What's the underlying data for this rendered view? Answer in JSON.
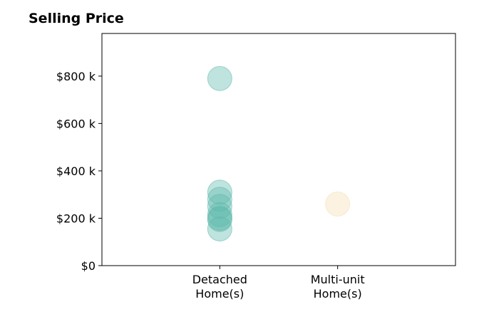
{
  "chart_data": {
    "type": "scatter",
    "title": "Selling Price",
    "xlabel": "",
    "ylabel": "",
    "categories": [
      "Detached\nHome(s)",
      "Multi-unit\nHome(s)"
    ],
    "x_range": [
      -1,
      2
    ],
    "ylim": [
      0,
      980000
    ],
    "y_ticks": [
      0,
      200000,
      400000,
      600000,
      800000
    ],
    "y_tick_labels": [
      "$0",
      "$200 k",
      "$400 k",
      "$600 k",
      "$800 k"
    ],
    "grid": false,
    "series": [
      {
        "category": "Detached\nHome(s)",
        "color": "#5fb8ad",
        "values": [
          790000,
          310000,
          280000,
          250000,
          215000,
          200000,
          195000,
          155000
        ]
      },
      {
        "category": "Multi-unit\nHome(s)",
        "color": "#f5deb3",
        "values": [
          260000
        ]
      }
    ]
  }
}
